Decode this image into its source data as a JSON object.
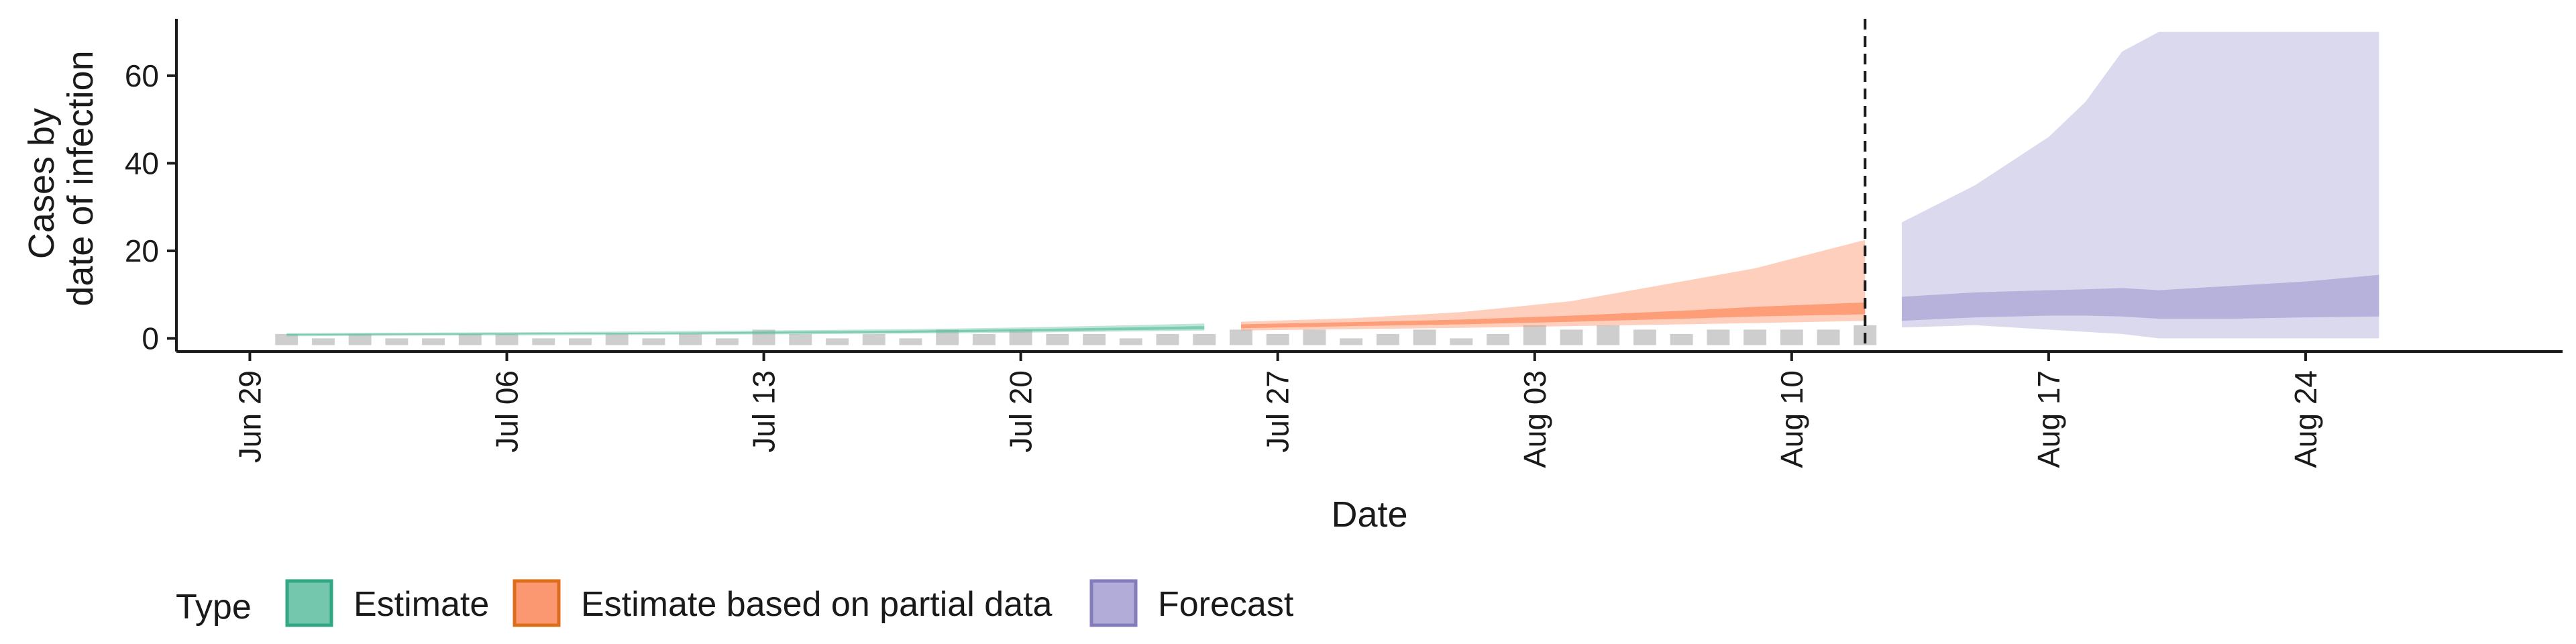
{
  "chart_data": {
    "type": "area",
    "xlabel": "Date",
    "ylabel": [
      "Cases by",
      "date of infection"
    ],
    "x_range": [
      "2020-06-27",
      "2020-08-31"
    ],
    "ylim": [
      -3,
      73
    ],
    "yticks": [
      0,
      20,
      40,
      60
    ],
    "xticks": [
      {
        "date": "2020-06-29",
        "label": "Jun 29"
      },
      {
        "date": "2020-07-06",
        "label": "Jul 06"
      },
      {
        "date": "2020-07-13",
        "label": "Jul 13"
      },
      {
        "date": "2020-07-20",
        "label": "Jul 20"
      },
      {
        "date": "2020-07-27",
        "label": "Jul 27"
      },
      {
        "date": "2020-08-03",
        "label": "Aug 03"
      },
      {
        "date": "2020-08-10",
        "label": "Aug 10"
      },
      {
        "date": "2020-08-17",
        "label": "Aug 17"
      },
      {
        "date": "2020-08-24",
        "label": "Aug 24"
      }
    ],
    "vline": "2020-08-12",
    "grid": false,
    "legend": {
      "title": "Type",
      "position": "bottom",
      "items": [
        {
          "label": "Estimate",
          "fill": "#66c2a5",
          "stroke": "#1b9e77"
        },
        {
          "label": "Estimate based on partial data",
          "fill": "#fc8d62",
          "stroke": "#d95f02"
        },
        {
          "label": "Forecast",
          "fill": "#a9a4d4",
          "stroke": "#7570b3"
        }
      ]
    },
    "observed_cases": {
      "color": "#bdbdbd",
      "dates": [
        "2020-06-30",
        "2020-07-01",
        "2020-07-02",
        "2020-07-03",
        "2020-07-04",
        "2020-07-05",
        "2020-07-06",
        "2020-07-07",
        "2020-07-08",
        "2020-07-09",
        "2020-07-10",
        "2020-07-11",
        "2020-07-12",
        "2020-07-13",
        "2020-07-14",
        "2020-07-15",
        "2020-07-16",
        "2020-07-17",
        "2020-07-18",
        "2020-07-19",
        "2020-07-20",
        "2020-07-21",
        "2020-07-22",
        "2020-07-23",
        "2020-07-24",
        "2020-07-25",
        "2020-07-26",
        "2020-07-27",
        "2020-07-28",
        "2020-07-29",
        "2020-07-30",
        "2020-07-31",
        "2020-08-01",
        "2020-08-02",
        "2020-08-03",
        "2020-08-04",
        "2020-08-05",
        "2020-08-06",
        "2020-08-07",
        "2020-08-08",
        "2020-08-09",
        "2020-08-10",
        "2020-08-11",
        "2020-08-12"
      ],
      "values": [
        1,
        0,
        1,
        0,
        0,
        1,
        1,
        0,
        0,
        1,
        0,
        1,
        0,
        2,
        1,
        0,
        1,
        0,
        2,
        1,
        2,
        1,
        1,
        0,
        1,
        1,
        2,
        1,
        2,
        0,
        1,
        2,
        0,
        1,
        3,
        2,
        3,
        2,
        1,
        2,
        2,
        2,
        2,
        3
      ]
    },
    "series": [
      {
        "name": "Estimate",
        "fill": "#66c2a5",
        "dates": [
          "2020-06-30",
          "2020-07-03",
          "2020-07-06",
          "2020-07-10",
          "2020-07-13",
          "2020-07-17",
          "2020-07-20",
          "2020-07-23",
          "2020-07-25"
        ],
        "outer_lower": [
          0.5,
          0.6,
          0.7,
          0.8,
          0.9,
          1.1,
          1.3,
          1.6,
          1.8
        ],
        "outer_upper": [
          1.2,
          1.3,
          1.4,
          1.6,
          1.8,
          2.1,
          2.5,
          3.0,
          3.4
        ],
        "inner_lower": [
          0.7,
          0.8,
          0.9,
          1.0,
          1.1,
          1.3,
          1.6,
          1.9,
          2.1
        ],
        "inner_upper": [
          1.0,
          1.1,
          1.2,
          1.3,
          1.5,
          1.8,
          2.1,
          2.5,
          2.8
        ]
      },
      {
        "name": "Estimate based on partial data",
        "fill": "#fc8d62",
        "dates": [
          "2020-07-26",
          "2020-07-29",
          "2020-08-01",
          "2020-08-04",
          "2020-08-07",
          "2020-08-09",
          "2020-08-12"
        ],
        "outer_lower": [
          1.8,
          2.1,
          2.4,
          2.8,
          3.2,
          3.5,
          4.0
        ],
        "outer_upper": [
          3.8,
          4.6,
          6.0,
          8.5,
          13.0,
          16.0,
          22.5
        ],
        "inner_lower": [
          2.3,
          2.8,
          3.2,
          3.8,
          4.5,
          5.0,
          5.5
        ],
        "inner_upper": [
          3.2,
          3.7,
          4.3,
          5.2,
          6.3,
          7.2,
          8.2
        ]
      },
      {
        "name": "Forecast",
        "fill": "#a9a4d4",
        "dates": [
          "2020-08-13",
          "2020-08-15",
          "2020-08-17",
          "2020-08-18",
          "2020-08-19",
          "2020-08-20",
          "2020-08-22",
          "2020-08-24",
          "2020-08-26"
        ],
        "outer_lower": [
          2.5,
          3.0,
          2.0,
          1.5,
          1.0,
          0,
          0,
          0,
          0
        ],
        "outer_upper": [
          26.5,
          35.0,
          46.0,
          54.0,
          65.5,
          70.0,
          70.0,
          70.0,
          70.0
        ],
        "inner_lower": [
          4.0,
          4.8,
          5.2,
          5.2,
          5.0,
          4.5,
          4.5,
          4.8,
          5.0
        ],
        "inner_upper": [
          9.5,
          10.5,
          11.0,
          11.2,
          11.5,
          11.0,
          12.0,
          13.0,
          14.5
        ]
      }
    ]
  }
}
